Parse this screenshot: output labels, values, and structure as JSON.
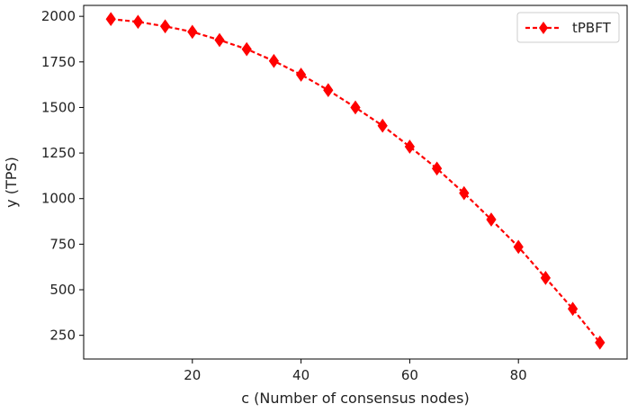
{
  "chart_data": {
    "type": "line",
    "title": "",
    "xlabel": "c (Number of consensus nodes)",
    "ylabel": "y (TPS)",
    "xlim": [
      0,
      100
    ],
    "ylim": [
      120,
      2060
    ],
    "xticks": [
      20,
      40,
      60,
      80
    ],
    "yticks": [
      250,
      500,
      750,
      1000,
      1250,
      1500,
      1750,
      2000
    ],
    "grid": false,
    "legend_position": "top-right",
    "series": [
      {
        "name": "tPBFT",
        "color": "#ff0000",
        "line_style": "dashed",
        "marker": "diamond",
        "x": [
          5,
          10,
          15,
          20,
          25,
          30,
          35,
          40,
          45,
          50,
          55,
          60,
          65,
          70,
          75,
          80,
          85,
          90,
          95
        ],
        "y": [
          1985,
          1970,
          1945,
          1915,
          1870,
          1820,
          1755,
          1680,
          1595,
          1500,
          1400,
          1285,
          1165,
          1030,
          885,
          735,
          565,
          395,
          210
        ]
      }
    ]
  }
}
